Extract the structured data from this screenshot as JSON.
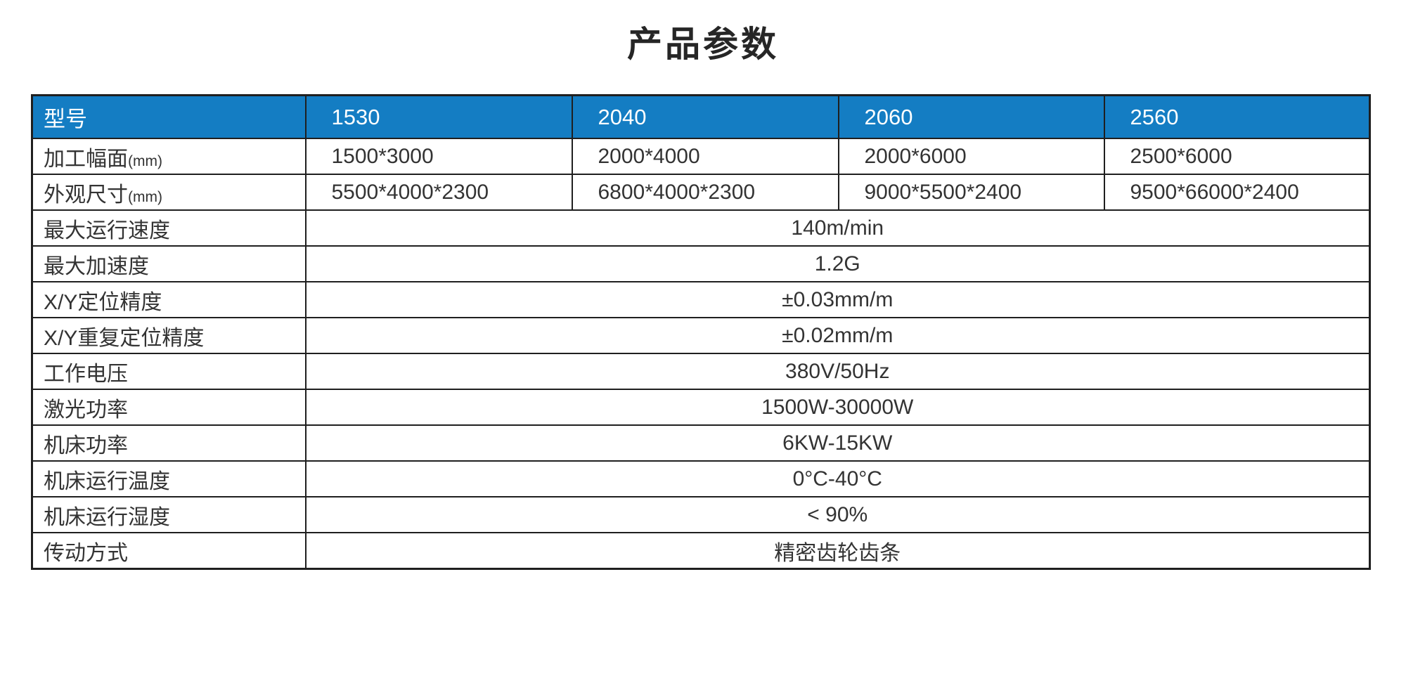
{
  "page": {
    "title": "产品参数"
  },
  "colors": {
    "header_bg": "#147DC3",
    "header_text": "#FFFFFF",
    "border": "#1F1F1F",
    "body_text": "#333333",
    "title_text": "#262626",
    "page_bg": "#FFFFFF"
  },
  "table": {
    "model_header_label": "型号",
    "models": [
      "1530",
      "2040",
      "2060",
      "2560"
    ],
    "per_model_rows": [
      {
        "label": "加工幅面",
        "unit": "(mm)",
        "values": [
          "1500*3000",
          "2000*4000",
          "2000*6000",
          "2500*6000"
        ]
      },
      {
        "label": "外观尺寸",
        "unit": "(mm)",
        "values": [
          "5500*4000*2300",
          "6800*4000*2300",
          "9000*5500*2400",
          "9500*66000*2400"
        ]
      }
    ],
    "shared_rows": [
      {
        "label": "最大运行速度",
        "value": "140m/min"
      },
      {
        "label": "最大加速度",
        "value": "1.2G"
      },
      {
        "label": "X/Y定位精度",
        "value": "±0.03mm/m"
      },
      {
        "label": "X/Y重复定位精度",
        "value": "±0.02mm/m"
      },
      {
        "label": "工作电压",
        "value": "380V/50Hz"
      },
      {
        "label": "激光功率",
        "value": "1500W-30000W"
      },
      {
        "label": "机床功率",
        "value": "6KW-15KW"
      },
      {
        "label": "机床运行温度",
        "value": "0°C-40°C"
      },
      {
        "label": "机床运行湿度",
        "value": "< 90%"
      },
      {
        "label": "传动方式",
        "value": "精密齿轮齿条"
      }
    ]
  }
}
